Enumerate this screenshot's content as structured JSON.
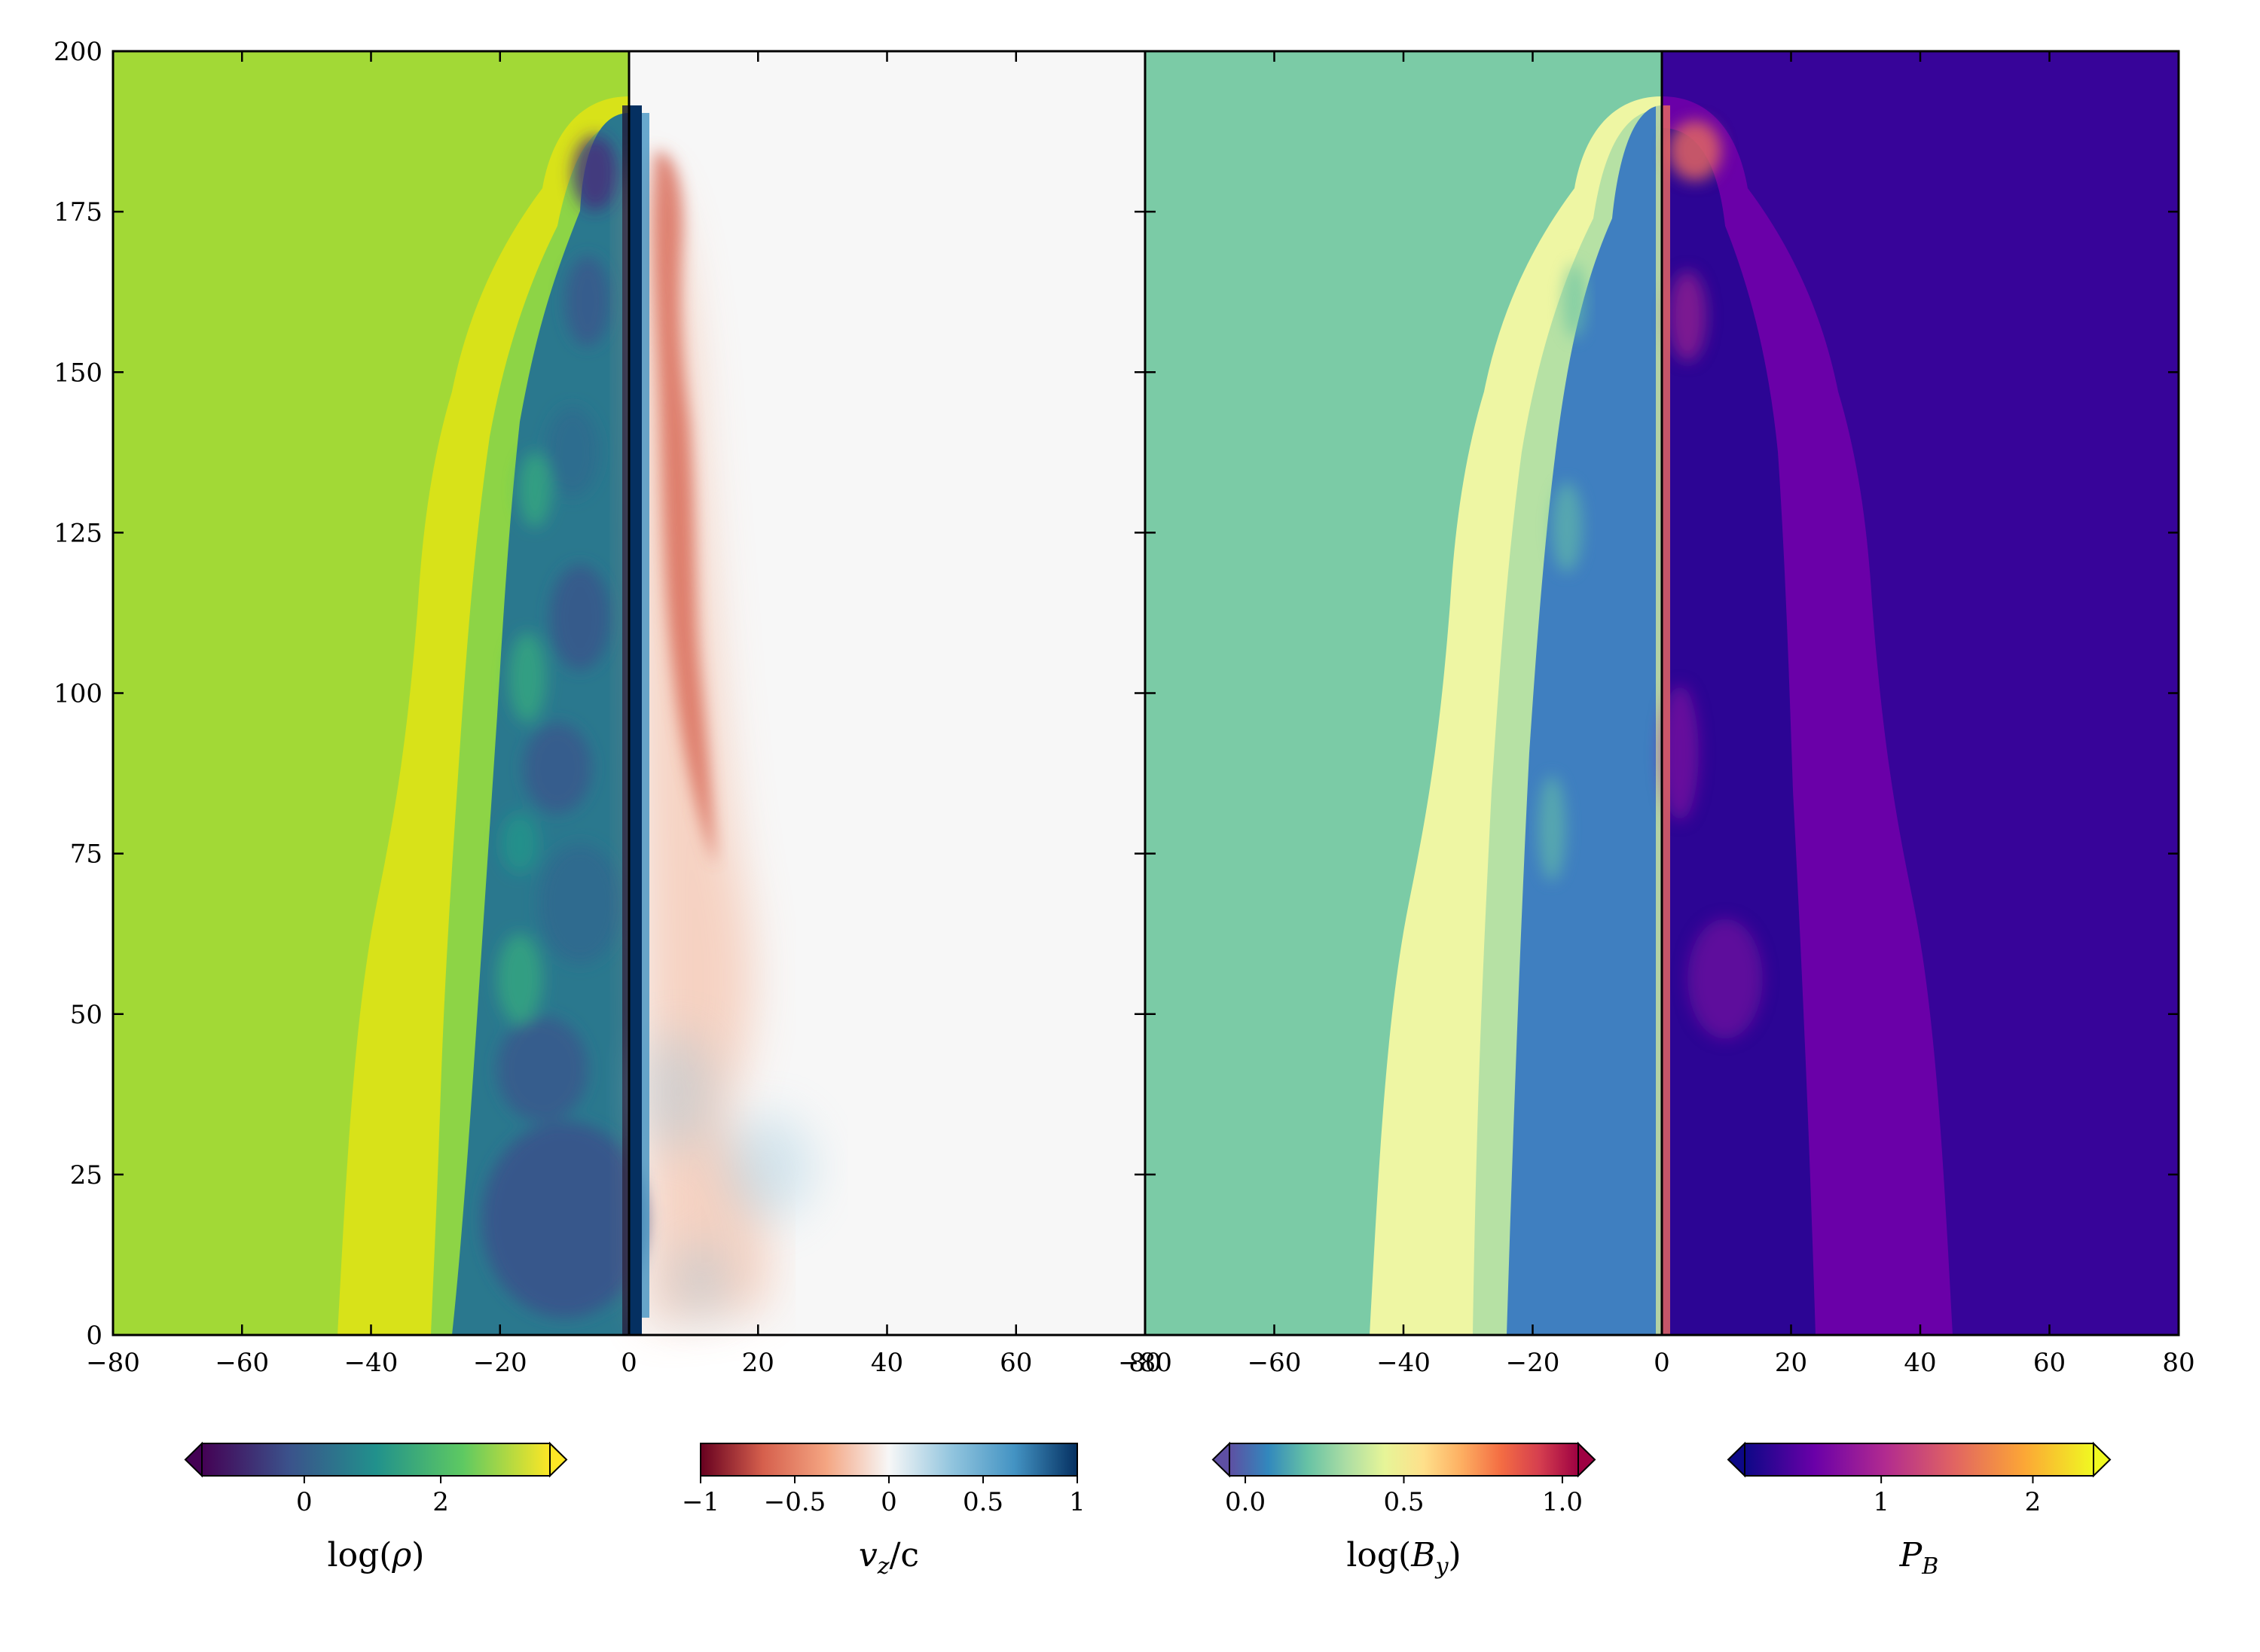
{
  "chart_data": [
    {
      "type": "heatmap",
      "panels": [
        {
          "quantity": "log(ρ)",
          "x_range": [
            -80,
            0
          ],
          "background_color": "#a2d936",
          "colormap": "viridis",
          "colormap_colors": [
            "#440154",
            "#3b528b",
            "#21918c",
            "#5ec962",
            "#fde725"
          ]
        },
        {
          "quantity": "v_z/c",
          "x_range": [
            0,
            80
          ],
          "background_color": "#f7f7f7",
          "colormap": "RdBu",
          "colormap_colors": [
            "#67001f",
            "#d6604d",
            "#f4a582",
            "#f7f7f7",
            "#92c5de",
            "#4393c3",
            "#053061"
          ]
        },
        {
          "quantity": "log(B_y)",
          "x_range": [
            -80,
            0
          ],
          "background_color": "#7bcba6",
          "colormap": "Spectral_r",
          "colormap_colors": [
            "#5e4fa2",
            "#3288bd",
            "#66c2a5",
            "#abdda4",
            "#e6f598",
            "#fee08b",
            "#fdae61",
            "#f46d43",
            "#d53e4f",
            "#9e0142"
          ]
        },
        {
          "quantity": "P_B",
          "x_range": [
            0,
            80
          ],
          "background_color": "#370499",
          "colormap": "plasma",
          "colormap_colors": [
            "#0d0887",
            "#6a00a8",
            "#b12a90",
            "#e16462",
            "#fca636",
            "#f0f921"
          ]
        }
      ],
      "y_range": [
        0,
        200
      ],
      "y_ticks": [
        "0",
        "25",
        "50",
        "75",
        "100",
        "125",
        "150",
        "175",
        "200"
      ],
      "x_ticks_left": [
        "−80",
        "−60",
        "−40",
        "−20",
        "0",
        "20",
        "40",
        "60",
        "80"
      ],
      "x_ticks_right": [
        "−80",
        "−60",
        "−40",
        "−20",
        "0",
        "20",
        "40",
        "60",
        "80"
      ],
      "colorbars": [
        {
          "label": "log(ρ)",
          "ticks": [
            "0",
            "2"
          ],
          "tick_values": [
            0,
            2
          ],
          "range": [
            -1.5,
            3.6
          ],
          "extend": "both"
        },
        {
          "label": "v_z/c",
          "ticks": [
            "−1",
            "−0.5",
            "0",
            "0.5",
            "1"
          ],
          "tick_values": [
            -1,
            -0.5,
            0,
            0.5,
            1
          ],
          "range": [
            -1,
            1
          ],
          "extend": "neither"
        },
        {
          "label": "log(B_y)",
          "ticks": [
            "0.0",
            "0.5",
            "1.0"
          ],
          "tick_values": [
            0.0,
            0.5,
            1.0
          ],
          "range": [
            -0.05,
            1.05
          ],
          "extend": "both"
        },
        {
          "label": "P_B",
          "ticks": [
            "1",
            "2"
          ],
          "tick_values": [
            1,
            2
          ],
          "range": [
            0.1,
            2.4
          ],
          "extend": "both"
        }
      ]
    }
  ]
}
